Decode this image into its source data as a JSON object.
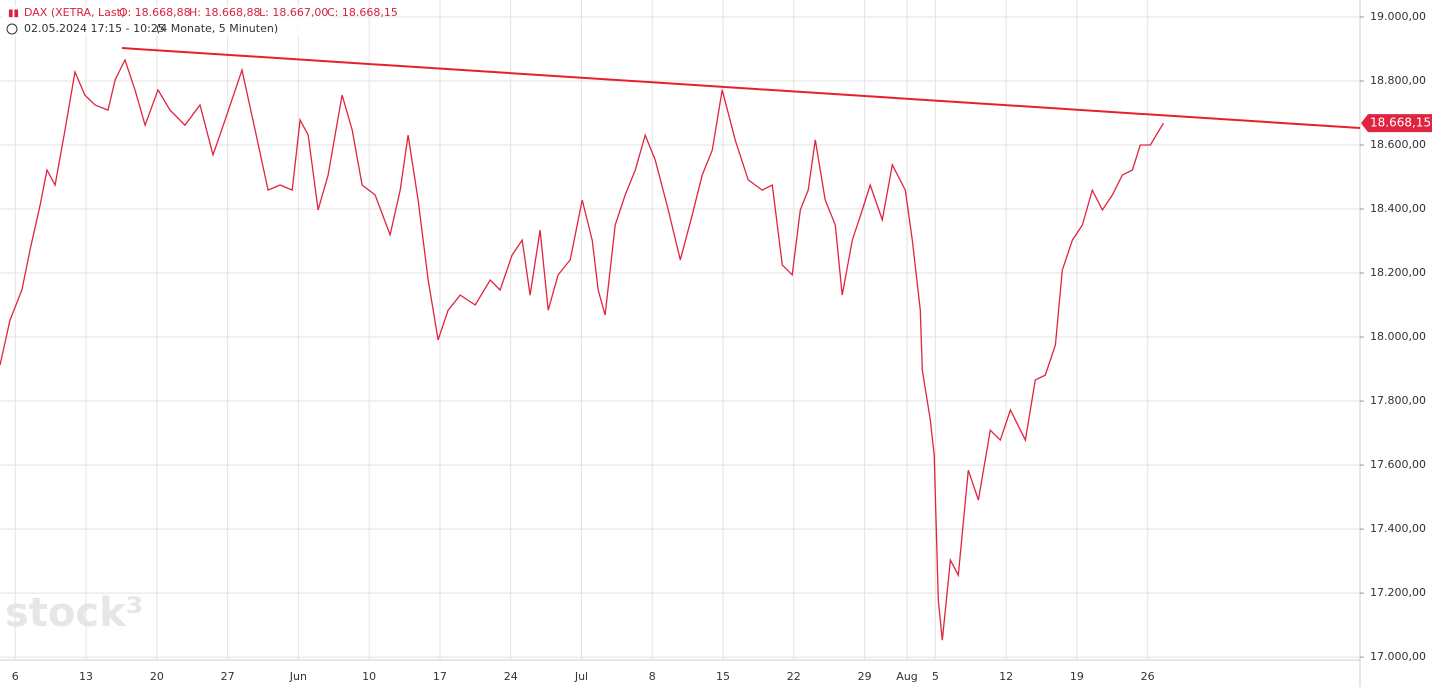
{
  "header": {
    "symbol": "DAX (XETRA, Last)",
    "open": "O: 18.668,88",
    "high": "H: 18.668,88",
    "low": "L: 18.667,00",
    "close": "C: 18.668,15",
    "range": "02.05.2024 17:15 - 10:25",
    "period": "(4 Monate, 5 Minuten)"
  },
  "watermark": "stock³",
  "chart_data": {
    "type": "line",
    "x": [
      0.92,
      1.63,
      2.47,
      3.04,
      3.75,
      4.24,
      4.81,
      5.51,
      6.22,
      6.92,
      7.63,
      8.55,
      9.05,
      9.75,
      10.46,
      11.17,
      12.08,
      12.93,
      13.99,
      15.05,
      15.97,
      16.82,
      18.02,
      18.94,
      19.86,
      20.71,
      21.56,
      22.12,
      22.69,
      23.39,
      24.1,
      25.09,
      25.8,
      26.5,
      27.42,
      28.48,
      29.19,
      29.75,
      30.46,
      31.17,
      31.87,
      32.58,
      33.43,
      34.49,
      35.55,
      36.25,
      37.1,
      37.81,
      38.37,
      39.08,
      39.65,
      40.35,
      41.2,
      42.05,
      42.76,
      43.18,
      43.67,
      44.38,
      45.09,
      45.8,
      46.5,
      47.21,
      48.13,
      48.98,
      49.82,
      50.53,
      51.24,
      51.94,
      52.86,
      53.78,
      54.77,
      55.48,
      56.19,
      56.89,
      57.46,
      58.02,
      58.52,
      59.22,
      59.93,
      60.42,
      61.13,
      61.84,
      62.4,
      63.25,
      63.96,
      64.88,
      65.37,
      65.94,
      66.08,
      66.64,
      66.92,
      67.21,
      67.49,
      68.06,
      68.62,
      69.33,
      70.04,
      70.88,
      71.59,
      72.3,
      73.36,
      74.06,
      74.77,
      75.48,
      75.97,
      76.68,
      77.39,
      78.09,
      78.8,
      79.51,
      80.21,
      80.92,
      81.48,
      82.19,
      83.11
    ],
    "series": [
      {
        "name": "DAX",
        "color": "#e0243f",
        "values": [
          17912,
          18053,
          18147,
          18272,
          18412,
          18522,
          18475,
          18647,
          18828,
          18756,
          18725,
          18709,
          18803,
          18866,
          18772,
          18662,
          18772,
          18709,
          18662,
          18725,
          18569,
          18678,
          18834,
          18647,
          18459,
          18475,
          18459,
          18678,
          18631,
          18397,
          18506,
          18756,
          18647,
          18475,
          18444,
          18319,
          18459,
          18631,
          18428,
          18178,
          17991,
          18084,
          18131,
          18100,
          18178,
          18147,
          18256,
          18303,
          18131,
          18334,
          18084,
          18194,
          18241,
          18428,
          18303,
          18147,
          18069,
          18350,
          18444,
          18522,
          18631,
          18553,
          18397,
          18241,
          18381,
          18506,
          18584,
          18772,
          18616,
          18491,
          18459,
          18475,
          18225,
          18194,
          18397,
          18459,
          18616,
          18428,
          18350,
          18131,
          18303,
          18397,
          18475,
          18366,
          18538,
          18459,
          18303,
          18084,
          17897,
          17741,
          17631,
          17178,
          17053,
          17303,
          17256,
          17584,
          17491,
          17709,
          17678,
          17772,
          17678,
          17866,
          17881,
          17975,
          18209,
          18303,
          18350,
          18459,
          18397,
          18444,
          18506,
          18522,
          18600,
          18600,
          18668
        ]
      }
    ],
    "xlim": [
      0.92,
      97
    ],
    "xticks": [
      {
        "value": 2,
        "label": "6"
      },
      {
        "value": 7,
        "label": "13"
      },
      {
        "value": 12,
        "label": "20"
      },
      {
        "value": 17,
        "label": "27"
      },
      {
        "value": 22,
        "label": "Jun"
      },
      {
        "value": 27,
        "label": "10"
      },
      {
        "value": 32,
        "label": "17"
      },
      {
        "value": 37,
        "label": "24"
      },
      {
        "value": 42,
        "label": "Jul"
      },
      {
        "value": 47,
        "label": "8"
      },
      {
        "value": 52,
        "label": "15"
      },
      {
        "value": 57,
        "label": "22"
      },
      {
        "value": 62,
        "label": "29"
      },
      {
        "value": 65,
        "label": "Aug"
      },
      {
        "value": 67,
        "label": "5"
      },
      {
        "value": 72,
        "label": "12"
      },
      {
        "value": 77,
        "label": "19"
      },
      {
        "value": 82,
        "label": "26"
      }
    ],
    "ylim": [
      16991,
      19053
    ],
    "yticks": [
      {
        "value": 17000,
        "label": "17.000,00"
      },
      {
        "value": 17200,
        "label": "17.200,00"
      },
      {
        "value": 17400,
        "label": "17.400,00"
      },
      {
        "value": 17600,
        "label": "17.600,00"
      },
      {
        "value": 17800,
        "label": "17.800,00"
      },
      {
        "value": 18000,
        "label": "18.000,00"
      },
      {
        "value": 18200,
        "label": "18.200,00"
      },
      {
        "value": 18400,
        "label": "18.400,00"
      },
      {
        "value": 18600,
        "label": "18.600,00"
      },
      {
        "value": 18800,
        "label": "18.800,00"
      },
      {
        "value": 19000,
        "label": "19.000,00"
      }
    ],
    "grid": true,
    "trendline": {
      "x": [
        9.54,
        97
      ],
      "y": [
        18903,
        18653
      ],
      "color": "#e8202a"
    },
    "last_price": {
      "value": 18668.15,
      "label": "18.668,15"
    }
  }
}
